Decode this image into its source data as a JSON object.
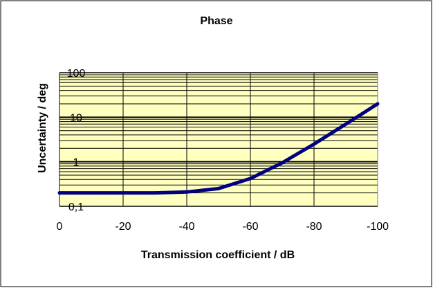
{
  "chart_data": {
    "type": "line",
    "title": "Phase",
    "xlabel": "Transmission coefficient / dB",
    "ylabel": "Uncertainty / deg",
    "x_tick_labels": [
      "0",
      "-20",
      "-40",
      "-60",
      "-80",
      "-100"
    ],
    "x_tick_values": [
      0,
      -20,
      -40,
      -60,
      -80,
      -100
    ],
    "y_tick_labels": [
      "0,1",
      "1",
      "10",
      "100"
    ],
    "y_tick_values": [
      0.1,
      1,
      10,
      100
    ],
    "xlim": [
      0,
      -100
    ],
    "ylim": [
      0.1,
      100
    ],
    "y_scale": "log",
    "grid": true,
    "legend": false,
    "series": [
      {
        "x": [
          0,
          -10,
          -20,
          -30,
          -40,
          -50,
          -60,
          -70,
          -80,
          -90,
          -100
        ],
        "y": [
          0.2,
          0.2,
          0.2,
          0.2,
          0.21,
          0.25,
          0.42,
          0.95,
          2.5,
          7.0,
          20.0
        ],
        "color": "#000080"
      }
    ],
    "colors": {
      "plot_background": "#FFFFC0",
      "line": "#000080",
      "grid": "#000000",
      "frame": "#000000",
      "plot_border": "#808080"
    }
  }
}
